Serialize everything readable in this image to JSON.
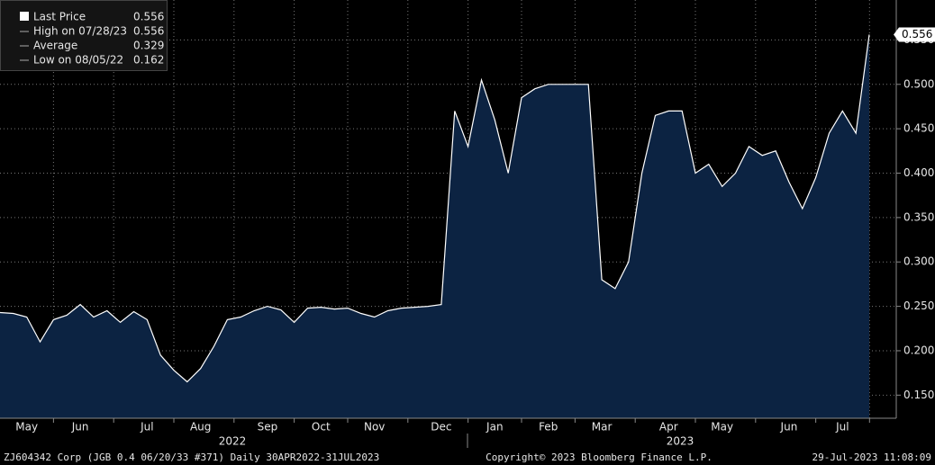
{
  "chart_data": {
    "type": "area",
    "categories": [
      null,
      null,
      "May",
      null,
      null,
      null,
      "Jun",
      null,
      null,
      null,
      null,
      "Jul",
      null,
      null,
      null,
      "Aug",
      null,
      null,
      null,
      null,
      "Sep",
      null,
      null,
      null,
      "Oct",
      null,
      null,
      null,
      "Nov",
      null,
      null,
      null,
      null,
      "Dec",
      null,
      null,
      null,
      "Jan",
      null,
      null,
      null,
      "Feb",
      null,
      null,
      null,
      "Mar",
      null,
      null,
      null,
      null,
      "Apr",
      null,
      null,
      null,
      "May",
      null,
      null,
      null,
      null,
      "Jun",
      null,
      null,
      null,
      "Jul",
      null,
      null
    ],
    "series": [
      {
        "name": "Last Price",
        "color": "#ffffff",
        "fill": "#0c2342",
        "values": [
          0.243,
          0.242,
          0.238,
          0.21,
          0.235,
          0.24,
          0.252,
          0.238,
          0.245,
          0.232,
          0.244,
          0.235,
          0.195,
          0.178,
          0.165,
          0.18,
          0.205,
          0.235,
          0.238,
          0.245,
          0.25,
          0.246,
          0.232,
          0.248,
          0.249,
          0.247,
          0.248,
          0.242,
          0.238,
          0.245,
          0.248,
          0.249,
          0.25,
          0.252,
          0.47,
          0.43,
          0.505,
          0.46,
          0.4,
          0.485,
          0.495,
          0.5,
          0.5,
          0.5,
          0.5,
          0.28,
          0.27,
          0.3,
          0.4,
          0.465,
          0.47,
          0.47,
          0.4,
          0.41,
          0.385,
          0.4,
          0.43,
          0.42,
          0.425,
          0.39,
          0.36,
          0.395,
          0.445,
          0.47,
          0.445,
          0.556
        ]
      }
    ],
    "year_labels": [
      "2022",
      "2023"
    ],
    "ylim": [
      0.124,
      0.595
    ],
    "yticks": [
      {
        "value": 0.15,
        "label": "0.150"
      },
      {
        "value": 0.2,
        "label": "0.200"
      },
      {
        "value": 0.25,
        "label": "0.250"
      },
      {
        "value": 0.3,
        "label": "0.300"
      },
      {
        "value": 0.35,
        "label": "0.350"
      },
      {
        "value": 0.4,
        "label": "0.400"
      },
      {
        "value": 0.45,
        "label": "0.450"
      },
      {
        "value": 0.5,
        "label": "0.500"
      },
      {
        "value": 0.55,
        "label": "0.550"
      }
    ],
    "last_tag": {
      "value": 0.556,
      "label": "0.556"
    },
    "grid": true,
    "legend": [
      {
        "label": "Last Price",
        "value": 0.556
      },
      {
        "label": "High on 07/28/23",
        "value": 0.556
      },
      {
        "label": "Average",
        "value": 0.329
      },
      {
        "label": "Low on 08/05/22",
        "value": 0.162
      }
    ]
  },
  "footer": {
    "left": "ZJ604342 Corp (JGB 0.4 06/20/33 #371)  Daily 30APR2022-31JUL2023",
    "center": "Copyright© 2023 Bloomberg Finance L.P.",
    "right": "29-Jul-2023 11:08:09"
  }
}
